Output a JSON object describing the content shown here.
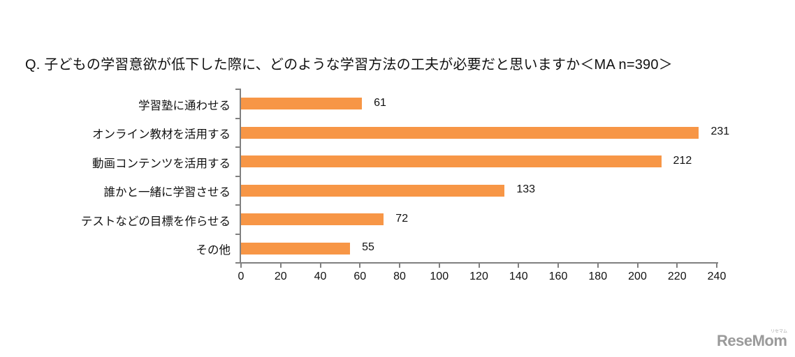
{
  "title": "Q.  子どもの学習意欲が低下した際に、どのような学習方法の工夫が必要だと思いますか＜MA  n=390＞",
  "logo": {
    "text": "ReseMom",
    "sub": "リセマム"
  },
  "colors": {
    "bar": "#F79646",
    "axis": "#808080",
    "text": "#111111"
  },
  "chart_data": {
    "type": "bar",
    "orientation": "horizontal",
    "title": "Q.  子どもの学習意欲が低下した際に、どのような学習方法の工夫が必要だと思いますか＜MA  n=390＞",
    "categories": [
      "学習塾に通わせる",
      "オンライン教材を活用する",
      "動画コンテンツを活用する",
      "誰かと一緒に学習させる",
      "テストなどの目標を作らせる",
      "その他"
    ],
    "values": [
      61,
      231,
      212,
      133,
      72,
      55
    ],
    "data_labels": [
      "61",
      "231",
      "212",
      "133",
      "72",
      "55"
    ],
    "xlabel": "",
    "ylabel": "",
    "xlim": [
      0,
      240
    ],
    "xticks": [
      "0",
      "20",
      "40",
      "60",
      "80",
      "100",
      "120",
      "140",
      "160",
      "180",
      "200",
      "220",
      "240"
    ],
    "grid": false,
    "legend": null
  }
}
